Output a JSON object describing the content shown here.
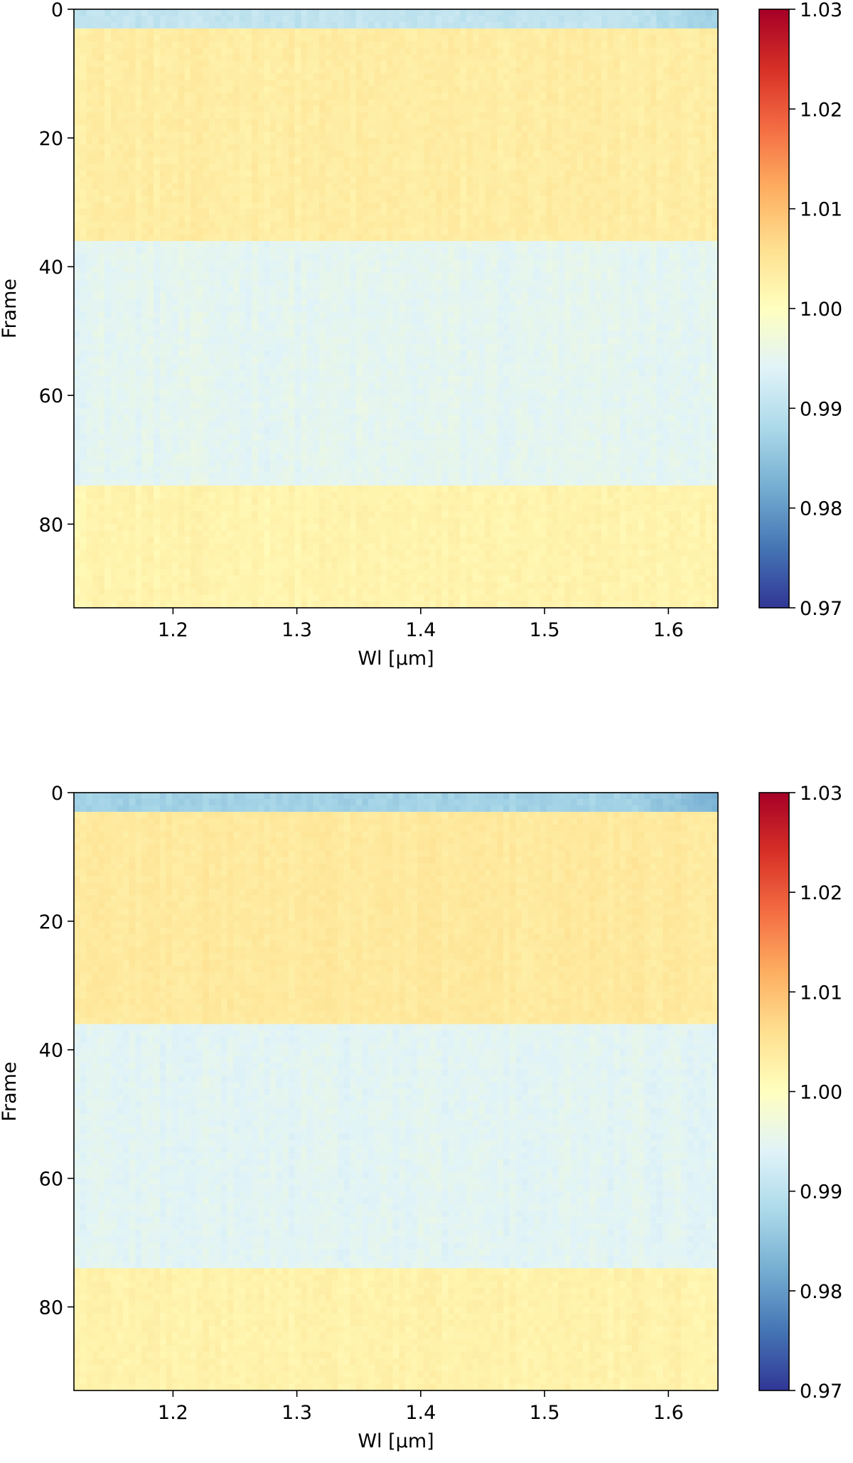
{
  "chart_data": [
    {
      "type": "heatmap",
      "title": "",
      "xlabel": "Wl [μm]",
      "ylabel": "Frame",
      "x_range": [
        1.12,
        1.64
      ],
      "y_range": [
        0,
        93
      ],
      "y_inverted": true,
      "x_ticks": [
        "1.2",
        "1.3",
        "1.4",
        "1.5",
        "1.6"
      ],
      "x_tick_values": [
        1.2,
        1.3,
        1.4,
        1.5,
        1.6
      ],
      "y_ticks": [
        "0",
        "20",
        "40",
        "60",
        "80"
      ],
      "y_tick_values": [
        0,
        20,
        40,
        60,
        80
      ],
      "n_wavelength_bins": 105,
      "n_frames": 93,
      "colormap": "RdYlBu_r",
      "colorbar": {
        "vmin": 0.97,
        "vmax": 1.03,
        "ticks": [
          "0.97",
          "0.98",
          "0.99",
          "1.00",
          "1.01",
          "1.02",
          "1.03"
        ],
        "tick_values": [
          0.97,
          0.98,
          0.99,
          1.0,
          1.01,
          1.02,
          1.03
        ]
      },
      "frame_segments": [
        {
          "frames": [
            0,
            3
          ],
          "value": 0.9905
        },
        {
          "frames": [
            3,
            36
          ],
          "value": 1.0035
        },
        {
          "frames": [
            36,
            74
          ],
          "value": 0.9948
        },
        {
          "frames": [
            74,
            93
          ],
          "value": 1.0022
        }
      ],
      "notes_visible": "bluer columns near 1.6 at frames 0-3"
    },
    {
      "type": "heatmap",
      "title": "",
      "xlabel": "Wl [μm]",
      "ylabel": "Frame",
      "x_range": [
        1.12,
        1.64
      ],
      "y_range": [
        0,
        93
      ],
      "y_inverted": true,
      "x_ticks": [
        "1.2",
        "1.3",
        "1.4",
        "1.5",
        "1.6"
      ],
      "x_tick_values": [
        1.2,
        1.3,
        1.4,
        1.5,
        1.6
      ],
      "y_ticks": [
        "0",
        "20",
        "40",
        "60",
        "80"
      ],
      "y_tick_values": [
        0,
        20,
        40,
        60,
        80
      ],
      "n_wavelength_bins": 105,
      "n_frames": 93,
      "colormap": "RdYlBu_r",
      "colorbar": {
        "vmin": 0.97,
        "vmax": 1.03,
        "ticks": [
          "0.97",
          "0.98",
          "0.99",
          "1.00",
          "1.01",
          "1.02",
          "1.03"
        ],
        "tick_values": [
          0.97,
          0.98,
          0.99,
          1.0,
          1.01,
          1.02,
          1.03
        ]
      },
      "frame_segments": [
        {
          "frames": [
            0,
            3
          ],
          "value": 0.987
        },
        {
          "frames": [
            3,
            36
          ],
          "value": 1.0042
        },
        {
          "frames": [
            36,
            74
          ],
          "value": 0.9945
        },
        {
          "frames": [
            74,
            93
          ],
          "value": 1.0025
        }
      ],
      "notes_visible": "stronger blue at frames 0-3 near 1.6"
    }
  ]
}
